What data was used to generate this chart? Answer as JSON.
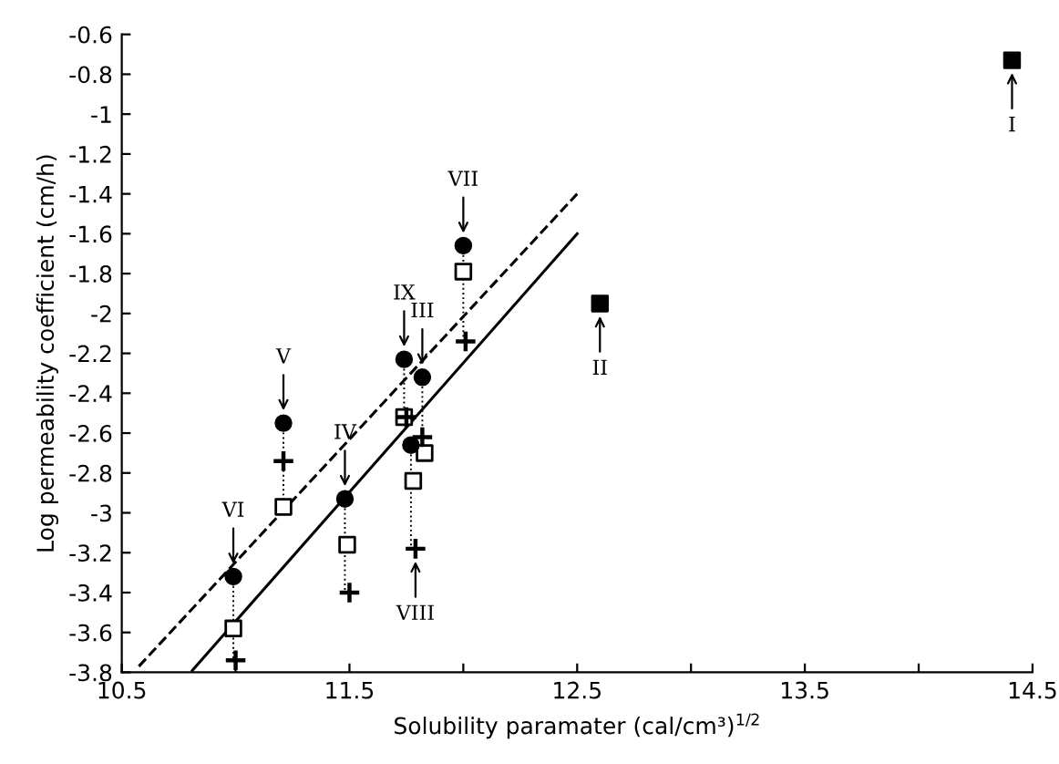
{
  "chart_data": {
    "type": "scatter",
    "xlabel": "Solubility paramater (cal/cm³)$^{1/2}$",
    "ylabel": "Log permeability coefficient (cm/h)",
    "xlim": [
      10.5,
      14.5
    ],
    "xticks": [
      10.5,
      {
        "value": 11,
        "label": null
      },
      11.5,
      {
        "value": 12,
        "label": null
      },
      12.5,
      {
        "value": 13,
        "label": null
      },
      13.5,
      {
        "value": 14,
        "label": null
      },
      14.5
    ],
    "ylim": [
      -3.8,
      -0.6
    ],
    "yticks": [
      -3.8,
      -3.6,
      -3.4,
      -3.2,
      -3,
      -2.8,
      -2.6,
      -2.4,
      -2.2,
      -2,
      -1.8,
      -1.6,
      -1.4,
      -1.2,
      -1,
      -0.8,
      -0.6
    ],
    "grid": false,
    "series": [
      {
        "type": "line",
        "line_style": "dotted",
        "marker": "none",
        "color": "#000000",
        "x": [
          10.99,
          10.99,
          11.1,
          11.21,
          11.21,
          11.21,
          11.3,
          11.48,
          11.48,
          11.6,
          11.74,
          11.74,
          11.76,
          11.77,
          11.77,
          11.8,
          11.82,
          11.82,
          11.82,
          11.9,
          12.0,
          12.0
        ],
        "values": [
          -3.32,
          -3.74,
          null,
          -2.55,
          -2.74,
          -2.97,
          null,
          -2.93,
          -3.4,
          null,
          -2.23,
          -2.52,
          null,
          -2.66,
          -3.18,
          null,
          -2.32,
          -2.62,
          -2.7,
          null,
          -1.66,
          -2.14
        ]
      },
      {
        "type": "line",
        "line_style": "dashed",
        "marker": "none",
        "color": "#000000",
        "x": [
          10.575,
          12.5
        ],
        "values": [
          -3.77,
          -1.4
        ]
      },
      {
        "type": "line",
        "line_style": "solid",
        "marker": "none",
        "color": "#000000",
        "x": [
          10.81,
          12.5
        ],
        "values": [
          -3.79,
          -1.6
        ]
      },
      {
        "marker": "cross",
        "color": "#000000",
        "x": [
          11.0,
          11.21,
          11.5,
          11.75,
          11.82,
          11.79,
          12.01
        ],
        "values": [
          -3.74,
          -2.74,
          -3.4,
          -2.52,
          -2.62,
          -3.18,
          -2.14
        ]
      },
      {
        "marker": "square",
        "color": "#000000",
        "x": [
          10.99,
          11.21,
          11.49,
          11.74,
          11.83,
          11.78,
          12.0
        ],
        "values": [
          -3.58,
          -2.97,
          -3.16,
          -2.52,
          -2.7,
          -2.84,
          -1.79
        ]
      },
      {
        "marker": "circle",
        "color": "#000000",
        "x": [
          10.99,
          11.21,
          11.48,
          11.74,
          11.82,
          11.77,
          12.0
        ],
        "values": [
          -3.32,
          -2.55,
          -2.93,
          -2.23,
          -2.32,
          -2.66,
          -1.66
        ]
      },
      {
        "marker": "square",
        "color": "#000000",
        "x": [
          12.6,
          14.41
        ],
        "values": [
          -1.95,
          -0.73
        ]
      }
    ],
    "annotations": [
      {
        "text": "VI",
        "x": 10.99,
        "y": -3.32
      },
      {
        "text": "V",
        "x": 11.21,
        "y": -2.55
      },
      {
        "text": "IV",
        "x": 11.48,
        "y": -2.93
      },
      {
        "text": "IX",
        "x": 11.74,
        "y": -2.23
      },
      {
        "text": "III",
        "x": 11.82,
        "y": -2.32
      },
      {
        "text": "VIII",
        "x": 11.79,
        "y": -3.18
      },
      {
        "text": "VII",
        "x": 12.0,
        "y": -1.66
      },
      {
        "text": "II",
        "x": 12.6,
        "y": -1.95
      },
      {
        "text": "I",
        "x": 14.41,
        "y": -0.73
      }
    ]
  }
}
